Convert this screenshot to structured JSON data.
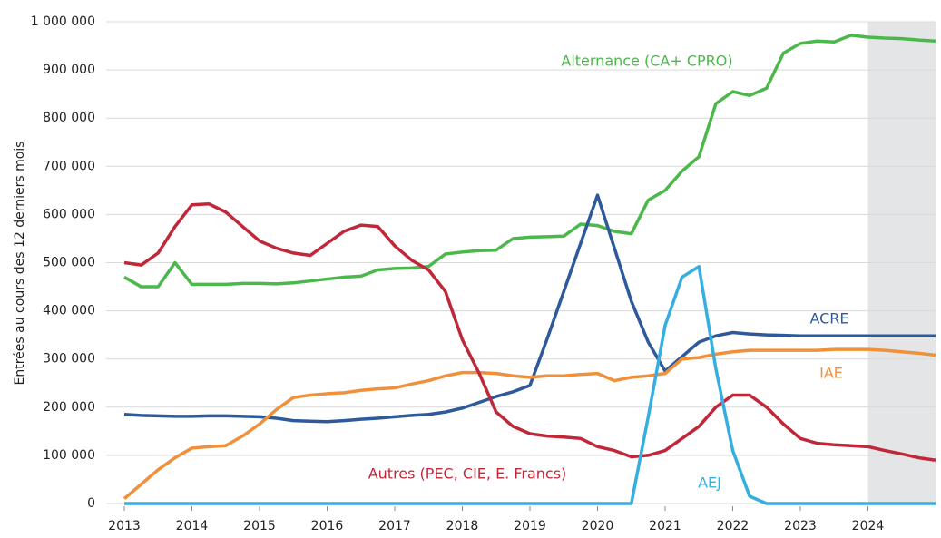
{
  "chart_data": {
    "type": "line",
    "y_label": "Entrées au cours des 12 derniers mois",
    "xlim": [
      2013,
      2025
    ],
    "xticks": [
      2013,
      2014,
      2015,
      2016,
      2017,
      2018,
      2019,
      2020,
      2021,
      2022,
      2023,
      2024
    ],
    "ylim": [
      0,
      1000000
    ],
    "yticks": [
      0,
      {
        "value": 100000,
        "label": "100 000"
      },
      {
        "value": 200000,
        "label": "200 000"
      },
      {
        "value": 300000,
        "label": "300 000"
      },
      {
        "value": 400000,
        "label": "400 000"
      },
      {
        "value": 500000,
        "label": "500 000"
      },
      {
        "value": 600000,
        "label": "600 000"
      },
      {
        "value": 700000,
        "label": "700 000"
      },
      {
        "value": 800000,
        "label": "800 000"
      },
      {
        "value": 900000,
        "label": "900 000"
      },
      {
        "value": 1000000,
        "label": "1 000 000"
      }
    ],
    "grid": true,
    "shade": [
      2024,
      2025
    ],
    "shade_color": "#e3e5e6",
    "x": [
      2013,
      2013.25,
      2013.5,
      2013.75,
      2014,
      2014.25,
      2014.5,
      2014.75,
      2015,
      2015.25,
      2015.5,
      2015.75,
      2016,
      2016.25,
      2016.5,
      2016.75,
      2017,
      2017.25,
      2017.5,
      2017.75,
      2018,
      2018.25,
      2018.5,
      2018.75,
      2019,
      2019.25,
      2019.5,
      2019.75,
      2020,
      2020.25,
      2020.5,
      2020.75,
      2021,
      2021.25,
      2021.5,
      2021.75,
      2022,
      2022.25,
      2022.5,
      2022.75,
      2023,
      2023.25,
      2023.5,
      2023.75,
      2024,
      2024.25,
      2024.5,
      2024.75,
      2025
    ],
    "series": [
      {
        "name": "Alternance (CA+ CPRO)",
        "color": "#4cb84c",
        "values": [
          470000,
          450000,
          450000,
          500000,
          455000,
          455000,
          455000,
          457000,
          457000,
          456000,
          458000,
          462000,
          466000,
          470000,
          472000,
          485000,
          488000,
          489000,
          492000,
          518000,
          522000,
          525000,
          526000,
          550000,
          553000,
          554000,
          555000,
          580000,
          577000,
          565000,
          560000,
          630000,
          650000,
          690000,
          720000,
          830000,
          855000,
          847000,
          862000,
          935000,
          955000,
          960000,
          958000,
          972000,
          968000,
          966000,
          965000,
          962000,
          960000
        ]
      },
      {
        "name": "ACRE",
        "color": "#2e5a9c",
        "values": [
          185000,
          183000,
          182000,
          181000,
          181000,
          182000,
          182000,
          181000,
          180000,
          177000,
          172000,
          171000,
          170000,
          172000,
          175000,
          177000,
          180000,
          183000,
          185000,
          190000,
          198000,
          210000,
          222000,
          232000,
          245000,
          340000,
          440000,
          540000,
          640000,
          530000,
          420000,
          335000,
          275000,
          305000,
          335000,
          348000,
          355000,
          352000,
          350000,
          349000,
          348000,
          348000,
          348000,
          348000,
          348000,
          348000,
          348000,
          348000,
          348000
        ]
      },
      {
        "name": "IAE",
        "color": "#f0903a",
        "values": [
          10000,
          40000,
          70000,
          95000,
          115000,
          118000,
          120000,
          140000,
          165000,
          195000,
          220000,
          225000,
          228000,
          230000,
          235000,
          238000,
          240000,
          248000,
          255000,
          265000,
          272000,
          272000,
          270000,
          265000,
          262000,
          265000,
          265000,
          268000,
          270000,
          255000,
          262000,
          265000,
          270000,
          300000,
          303000,
          310000,
          315000,
          318000,
          318000,
          318000,
          318000,
          318000,
          320000,
          320000,
          320000,
          318000,
          315000,
          312000,
          308000
        ]
      },
      {
        "name": "Autres (PEC, CIE, E. Francs)",
        "color": "#c0283a",
        "values": [
          500000,
          495000,
          520000,
          575000,
          620000,
          622000,
          605000,
          575000,
          545000,
          530000,
          520000,
          515000,
          540000,
          565000,
          578000,
          575000,
          535000,
          505000,
          485000,
          440000,
          340000,
          270000,
          190000,
          160000,
          145000,
          140000,
          138000,
          135000,
          118000,
          110000,
          97000,
          100000,
          110000,
          135000,
          160000,
          200000,
          225000,
          225000,
          200000,
          165000,
          135000,
          125000,
          122000,
          120000,
          118000,
          110000,
          103000,
          95000,
          90000
        ]
      },
      {
        "name": "AEJ",
        "color": "#36aee0",
        "values": [
          0,
          0,
          0,
          0,
          0,
          0,
          0,
          0,
          0,
          0,
          0,
          0,
          0,
          0,
          0,
          0,
          0,
          0,
          0,
          0,
          0,
          0,
          0,
          0,
          0,
          0,
          0,
          0,
          0,
          0,
          0,
          180000,
          370000,
          470000,
          492000,
          280000,
          110000,
          15000,
          0,
          0,
          0,
          0,
          0,
          0,
          0,
          0,
          0,
          0,
          0
        ]
      }
    ]
  }
}
